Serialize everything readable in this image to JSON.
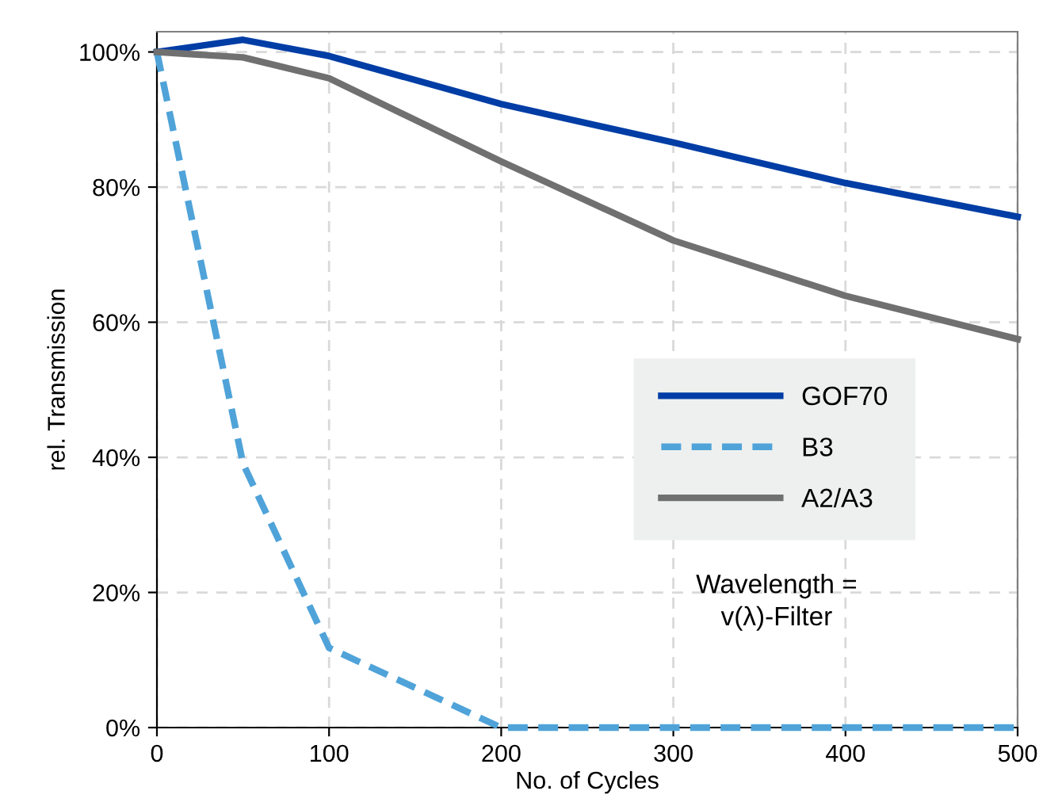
{
  "chart_data": {
    "type": "line",
    "xlabel": "No. of Cycles",
    "ylabel": "rel. Transmission",
    "x": [
      0,
      50,
      100,
      200,
      300,
      400,
      500
    ],
    "series": [
      {
        "name": "GOF70",
        "color": "#003da5",
        "line_style": "solid",
        "values": [
          100,
          101.8,
          99.4,
          92.3,
          86.6,
          80.6,
          75.6
        ]
      },
      {
        "name": "B3",
        "color": "#4fa3d9",
        "line_style": "dashed",
        "values": [
          100,
          39.1,
          11.8,
          0,
          0,
          0,
          0
        ]
      },
      {
        "name": "A2/A3",
        "color": "#707070",
        "line_style": "solid",
        "values": [
          100,
          99.2,
          96.1,
          83.8,
          72.1,
          63.9,
          57.5
        ]
      }
    ],
    "xlim": [
      0,
      500
    ],
    "xticks": [
      0,
      100,
      200,
      300,
      400,
      500
    ],
    "ylim": [
      0,
      103
    ],
    "yticks": [
      {
        "value": 0,
        "label": "0%"
      },
      {
        "value": 20,
        "label": "20%"
      },
      {
        "value": 40,
        "label": "40%"
      },
      {
        "value": 60,
        "label": "60%"
      },
      {
        "value": 80,
        "label": "80%"
      },
      {
        "value": 100,
        "label": "100%"
      }
    ],
    "grid": true,
    "legend": "center right",
    "marker": "none",
    "annotations": [
      "Wavelength =\nv(λ)-Filter"
    ]
  }
}
